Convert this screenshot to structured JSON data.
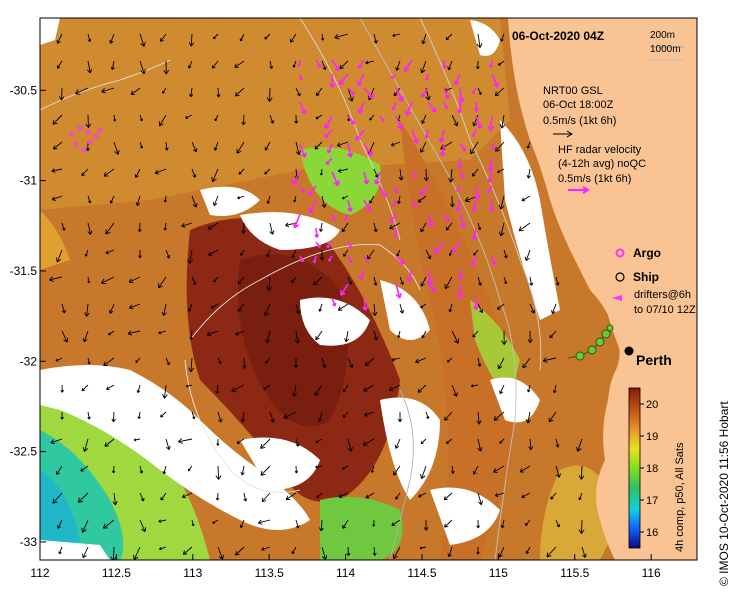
{
  "header": {
    "date": "06-Oct-2020 04Z",
    "contour_a": "200m",
    "contour_b": "1000m"
  },
  "gsl_legend": {
    "line1": "NRT00 GSL",
    "line2": "06-Oct 18:00Z",
    "line3": "0.5m/s (1kt 6h)"
  },
  "hf_legend": {
    "line1": "HF radar velocity",
    "line2": "(4-12h avg) noQC",
    "line3": "0.5m/s (1kt 6h)"
  },
  "markers": {
    "argo": "Argo",
    "ship": "Ship",
    "drifters_line1": "drifters@6h",
    "drifters_line2": "to 07/10 12Z"
  },
  "place": {
    "city": "Perth"
  },
  "colorbar": {
    "ticks": [
      "20",
      "19",
      "18",
      "17",
      "16"
    ],
    "label": "4h comp, p50, All Sats",
    "min": 15.5,
    "max": 20.5
  },
  "credit": "© IMOS 10-Oct-2020 11:56 Hobart",
  "axes": {
    "x_ticks": [
      "112",
      "112.5",
      "113",
      "113.5",
      "114",
      "114.5",
      "115",
      "115.5",
      "116"
    ],
    "y_ticks": [
      "-30.5",
      "-31",
      "-31.5",
      "-32",
      "-32.5",
      "-33"
    ],
    "x_range": [
      112,
      116.3
    ],
    "y_range": [
      -30.1,
      -33.1
    ]
  },
  "colors": {
    "land": "#f9c394",
    "cloud": "#ffffff",
    "gsl_arrow": "#000000",
    "hf_arrow": "#ff22ff",
    "argo": "#ff33ff",
    "drifter_track": "#66cc33"
  },
  "icons": {
    "city": "city-dot-icon",
    "ship": "ship-circle-icon",
    "argo": "argo-marker-icon"
  }
}
